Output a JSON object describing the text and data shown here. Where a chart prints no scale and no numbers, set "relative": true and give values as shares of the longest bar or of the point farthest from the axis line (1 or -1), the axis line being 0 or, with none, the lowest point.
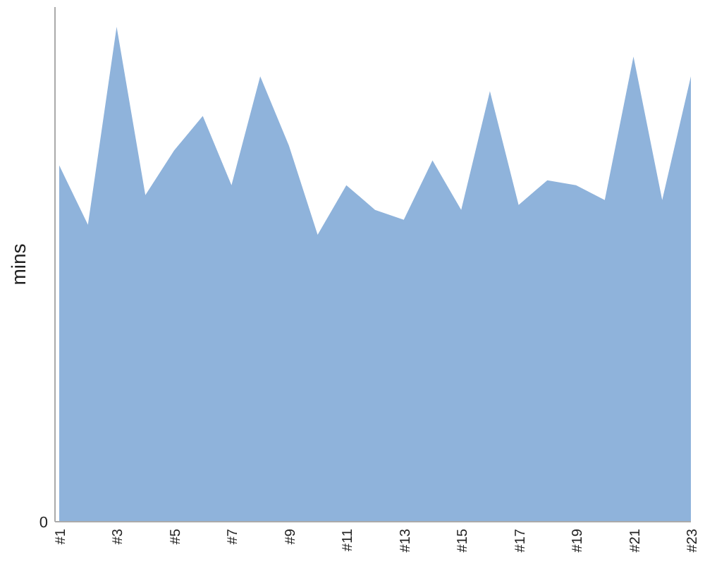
{
  "chart_data": {
    "type": "area",
    "ylabel": "mins",
    "relative": true,
    "color": "#8fb3db",
    "categories": [
      "#1",
      null,
      "#3",
      null,
      "#5",
      null,
      "#7",
      null,
      "#9",
      null,
      "#11",
      null,
      "#13",
      null,
      "#15",
      null,
      "#17",
      null,
      "#19",
      null,
      "#21",
      null,
      "#23"
    ],
    "values": [
      0.72,
      0.6,
      1,
      0.66,
      0.75,
      0.82,
      0.68,
      0.9,
      0.76,
      0.58,
      0.68,
      0.63,
      0.61,
      0.73,
      0.63,
      0.87,
      0.64,
      0.69,
      0.68,
      0.65,
      0.94,
      0.65,
      0.9
    ],
    "annotations": [
      "0"
    ]
  }
}
